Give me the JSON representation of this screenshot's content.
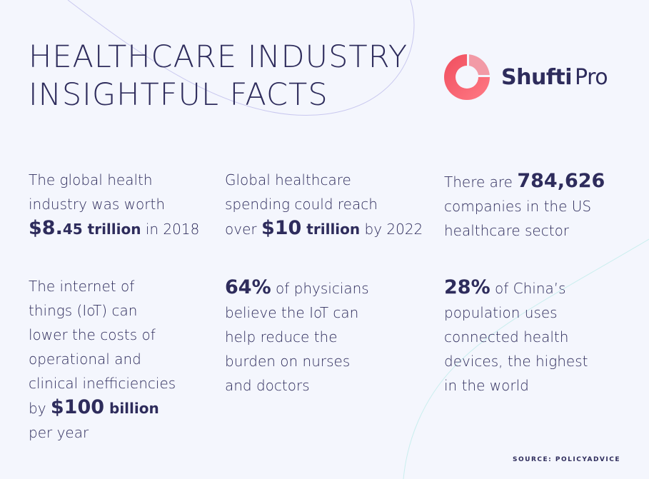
{
  "title": {
    "line1": "HEALTHCARE INDUSTRY",
    "line2": "INSIGHTFUL FACTS"
  },
  "logo": {
    "text_bold": "Shufti",
    "text_regular": "Pro",
    "icon": "shufti-ring-logo",
    "colors": {
      "gradient_start": "#f04e5e",
      "gradient_end": "#ff7a85"
    }
  },
  "facts": {
    "f1": {
      "l1": "The global health",
      "l2": "industry was worth",
      "value": "$8.",
      "value_small": "45",
      "unit": " trillion",
      "suffix": " in 2018"
    },
    "f2": {
      "l1": "Global healthcare",
      "l2": "spending could reach",
      "prefix": "over ",
      "value": "$10",
      "unit": " trillion",
      "suffix": " by 2022"
    },
    "f3": {
      "prefix": "There are ",
      "value": "784,626",
      "l2": "companies in the US",
      "l3": "healthcare sector"
    },
    "f4": {
      "l1": "The internet of",
      "l2": "things (IoT) can",
      "l3": "lower the costs of",
      "l4": "operational and",
      "l5": "clinical inefficiencies",
      "prefix": "by ",
      "value": "$100",
      "unit": " billion",
      "l7": "per year"
    },
    "f5": {
      "value": "64%",
      "rest": " of physicians",
      "l2": "believe the IoT can",
      "l3": "help reduce the",
      "l4": "burden on nurses",
      "l5": "and doctors"
    },
    "f6": {
      "value": "28%",
      "rest": " of China’s",
      "l2": "population uses",
      "l3": "connected health",
      "l4": "devices, the highest",
      "l5": "in the world"
    }
  },
  "source": "SOURCE: POLICYADVICE",
  "colors": {
    "background": "#f4f6fd",
    "text": "#2e2c5c",
    "accent": "#f04e5e",
    "decor_line": "#c9c8ef"
  }
}
